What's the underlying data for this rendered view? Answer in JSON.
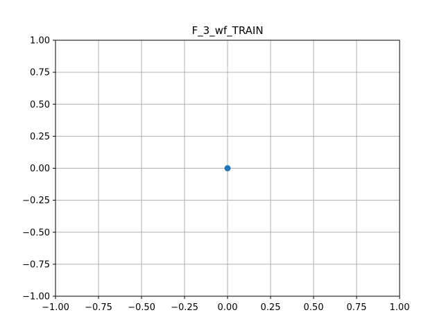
{
  "chart_data": {
    "type": "scatter",
    "title": "F_3_wf_TRAIN",
    "xlabel": "",
    "ylabel": "",
    "xlim": [
      -1.0,
      1.0
    ],
    "ylim": [
      -1.0,
      1.0
    ],
    "grid": true,
    "x_ticks": [
      -1.0,
      -0.75,
      -0.5,
      -0.25,
      0.0,
      0.25,
      0.5,
      0.75,
      1.0
    ],
    "y_ticks": [
      -1.0,
      -0.75,
      -0.5,
      -0.25,
      0.0,
      0.25,
      0.5,
      0.75,
      1.0
    ],
    "x_tick_labels": [
      "−1.00",
      "−0.75",
      "−0.50",
      "−0.25",
      "0.00",
      "0.25",
      "0.50",
      "0.75",
      "1.00"
    ],
    "y_tick_labels": [
      "−1.00",
      "−0.75",
      "−0.50",
      "−0.25",
      "0.00",
      "0.25",
      "0.50",
      "0.75",
      "1.00"
    ],
    "series": [
      {
        "points": [
          {
            "x": 0.0,
            "y": 0.0
          }
        ],
        "color": "#1f77b4"
      }
    ]
  }
}
